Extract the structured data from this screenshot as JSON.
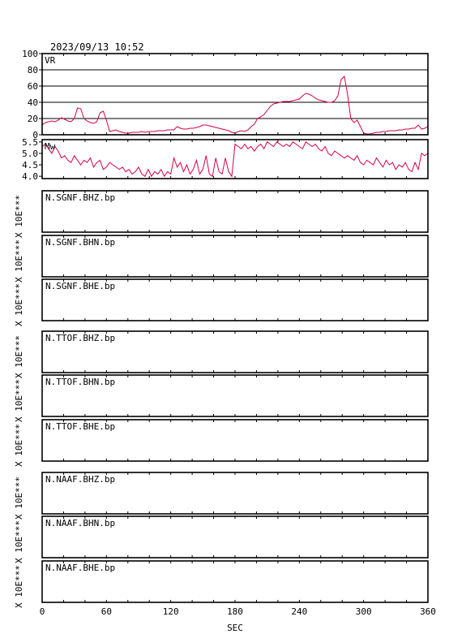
{
  "timestamp": "2023/09/13 10:52",
  "xlabel": "SEC",
  "colors": {
    "series": "#d6004c",
    "frame": "#000000"
  },
  "chart_data": [
    {
      "type": "line",
      "name_label": "VR",
      "ylim": [
        0,
        100
      ],
      "yticks": [
        "100",
        "80",
        "60",
        "40",
        "20",
        "0"
      ],
      "ytick_values": [
        100,
        80,
        60,
        40,
        20,
        0
      ],
      "grid": true,
      "xlim": [
        0,
        360
      ],
      "x": [
        0,
        3,
        6,
        9,
        12,
        15,
        18,
        21,
        24,
        27,
        30,
        33,
        36,
        39,
        42,
        45,
        48,
        51,
        54,
        57,
        60,
        63,
        66,
        69,
        72,
        75,
        78,
        81,
        84,
        87,
        90,
        93,
        96,
        99,
        102,
        105,
        108,
        111,
        114,
        117,
        120,
        123,
        126,
        129,
        132,
        135,
        138,
        141,
        144,
        147,
        150,
        153,
        156,
        159,
        162,
        165,
        168,
        171,
        174,
        177,
        180,
        183,
        186,
        189,
        192,
        195,
        198,
        201,
        204,
        207,
        210,
        213,
        216,
        219,
        222,
        225,
        228,
        231,
        234,
        237,
        240,
        243,
        246,
        249,
        252,
        255,
        258,
        261,
        264,
        267,
        270,
        273,
        276,
        279,
        282,
        285,
        288,
        291,
        294,
        297,
        300,
        303,
        306,
        309,
        312,
        315,
        318,
        321,
        324,
        327,
        330,
        333,
        336,
        339,
        342,
        345,
        348,
        351,
        354,
        357,
        360
      ],
      "y": [
        12,
        15,
        16,
        17,
        16,
        18,
        21,
        19,
        17,
        16,
        20,
        33,
        32,
        20,
        17,
        15,
        14,
        16,
        27,
        29,
        18,
        4,
        5,
        6,
        4,
        3,
        2,
        2,
        3,
        3,
        3,
        4,
        3,
        4,
        4,
        4,
        5,
        5,
        5,
        6,
        6,
        6,
        10,
        8,
        7,
        7,
        8,
        8,
        9,
        10,
        12,
        12,
        11,
        10,
        9,
        8,
        7,
        6,
        5,
        3,
        2,
        4,
        5,
        4,
        6,
        10,
        13,
        20,
        22,
        25,
        30,
        35,
        38,
        39,
        40,
        41,
        41,
        41,
        42,
        43,
        44,
        48,
        51,
        50,
        48,
        45,
        43,
        42,
        41,
        40,
        40,
        42,
        48,
        68,
        72,
        50,
        20,
        15,
        18,
        10,
        2,
        1,
        1,
        2,
        3,
        3,
        4,
        4,
        5,
        5,
        5,
        6,
        6,
        7,
        7,
        8,
        8,
        12,
        7,
        8,
        10
      ]
    },
    {
      "type": "line",
      "name_label": "Mw",
      "ylim": [
        3.9,
        5.6
      ],
      "yticks": [
        "5.5",
        "5.0",
        "4.5",
        "4.0"
      ],
      "ytick_values": [
        5.5,
        5.0,
        4.5,
        4.0
      ],
      "grid": false,
      "xlim": [
        0,
        360
      ],
      "x": [
        0,
        3,
        6,
        9,
        12,
        15,
        18,
        21,
        24,
        27,
        30,
        33,
        36,
        39,
        42,
        45,
        48,
        51,
        54,
        57,
        60,
        63,
        66,
        69,
        72,
        75,
        78,
        81,
        84,
        87,
        90,
        93,
        96,
        99,
        102,
        105,
        108,
        111,
        114,
        117,
        120,
        123,
        126,
        129,
        132,
        135,
        138,
        141,
        144,
        147,
        150,
        153,
        156,
        159,
        162,
        165,
        168,
        171,
        174,
        177,
        180,
        183,
        186,
        189,
        192,
        195,
        198,
        201,
        204,
        207,
        210,
        213,
        216,
        219,
        222,
        225,
        228,
        231,
        234,
        237,
        240,
        243,
        246,
        249,
        252,
        255,
        258,
        261,
        264,
        267,
        270,
        273,
        276,
        279,
        282,
        285,
        288,
        291,
        294,
        297,
        300,
        303,
        306,
        309,
        312,
        315,
        318,
        321,
        324,
        327,
        330,
        333,
        336,
        339,
        342,
        345,
        348,
        351,
        354,
        357,
        360
      ],
      "y": [
        5.3,
        5.4,
        5.2,
        5.0,
        5.3,
        5.1,
        4.8,
        4.9,
        4.7,
        4.6,
        4.9,
        4.7,
        4.5,
        4.7,
        4.6,
        4.8,
        4.4,
        4.6,
        4.7,
        4.3,
        4.4,
        4.6,
        4.5,
        4.4,
        4.3,
        4.4,
        4.2,
        4.3,
        4.1,
        4.2,
        4.4,
        4.1,
        4.0,
        4.3,
        4.0,
        4.2,
        4.1,
        4.3,
        4.0,
        4.2,
        4.1,
        4.8,
        4.4,
        4.6,
        4.2,
        4.5,
        4.1,
        4.3,
        4.7,
        4.1,
        4.3,
        4.9,
        4.1,
        4.0,
        4.8,
        4.2,
        4.1,
        4.8,
        4.2,
        4.0,
        5.4,
        5.3,
        5.2,
        5.4,
        5.2,
        5.3,
        5.1,
        5.3,
        5.4,
        5.2,
        5.5,
        5.4,
        5.3,
        5.5,
        5.4,
        5.3,
        5.4,
        5.3,
        5.5,
        5.4,
        5.3,
        5.2,
        5.5,
        5.4,
        5.3,
        5.4,
        5.2,
        5.1,
        5.3,
        5.0,
        4.9,
        5.1,
        5.0,
        4.9,
        4.8,
        4.9,
        4.8,
        4.7,
        4.9,
        4.6,
        4.5,
        4.7,
        4.6,
        4.5,
        4.8,
        4.6,
        4.4,
        4.7,
        4.5,
        4.6,
        4.3,
        4.5,
        4.4,
        4.6,
        4.3,
        4.2,
        4.6,
        4.3,
        5.0,
        4.9,
        5.0
      ]
    }
  ],
  "traces": [
    {
      "label": "N.SGNF.BHZ.bp",
      "scale": "X 10E***"
    },
    {
      "label": "N.SGNF.BHN.bp",
      "scale": "X 10E***"
    },
    {
      "label": "N.SGNF.BHE.bp",
      "scale": "X 10E***"
    },
    {
      "label": "N.TTOF.BHZ.bp",
      "scale": "X 10E***"
    },
    {
      "label": "N.TTOF.BHN.bp",
      "scale": "X 10E***"
    },
    {
      "label": "N.TTOF.BHE.bp",
      "scale": "X 10E***"
    },
    {
      "label": "N.NAAF.BHZ.bp",
      "scale": "X 10E***"
    },
    {
      "label": "N.NAAF.BHN.bp",
      "scale": "X 10E***"
    },
    {
      "label": "N.NAAF.BHE.bp",
      "scale": "X 10E***"
    }
  ],
  "xaxis": {
    "ticks": [
      "0",
      "60",
      "120",
      "180",
      "240",
      "300",
      "360"
    ],
    "tick_values": [
      0,
      60,
      120,
      180,
      240,
      300,
      360
    ]
  }
}
